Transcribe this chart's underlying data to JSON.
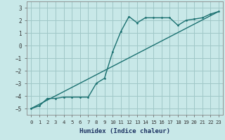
{
  "xlabel": "Humidex (Indice chaleur)",
  "background_color": "#c8e8e8",
  "grid_color": "#a0c8c8",
  "line_color": "#1a7070",
  "xlim": [
    -0.5,
    23.5
  ],
  "ylim": [
    -5.5,
    3.5
  ],
  "xticks": [
    0,
    1,
    2,
    3,
    4,
    5,
    6,
    7,
    8,
    9,
    10,
    11,
    12,
    13,
    14,
    15,
    16,
    17,
    18,
    19,
    20,
    21,
    22,
    23
  ],
  "yticks": [
    -5,
    -4,
    -3,
    -2,
    -1,
    0,
    1,
    2,
    3
  ],
  "series1_x": [
    0,
    1,
    2,
    3,
    4,
    5,
    6,
    7,
    8,
    9,
    10,
    11,
    12,
    13,
    14,
    15,
    16,
    17,
    18,
    19,
    20,
    21,
    22,
    23
  ],
  "series1_y": [
    -5.0,
    -4.8,
    -4.2,
    -4.2,
    -4.1,
    -4.1,
    -4.1,
    -4.1,
    -3.0,
    -2.6,
    -0.5,
    1.1,
    2.3,
    1.8,
    2.2,
    2.2,
    2.2,
    2.2,
    1.6,
    2.0,
    2.1,
    2.2,
    2.5,
    2.7
  ],
  "series2_x": [
    0,
    23
  ],
  "series2_y": [
    -5.0,
    2.7
  ]
}
